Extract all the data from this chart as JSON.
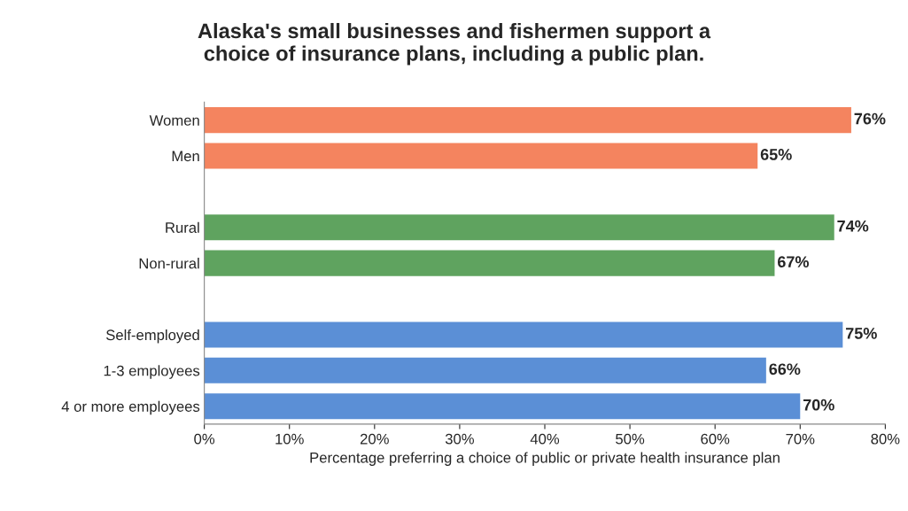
{
  "chart_data": {
    "type": "bar",
    "orientation": "horizontal",
    "title": "Alaska's small businesses and fishermen support a\nchoice of insurance plans, including a public plan.",
    "xlabel": "Percentage preferring a choice of public or private health insurance plan",
    "categories": [
      "Women",
      "Men",
      null,
      "Rural",
      "Non-rural",
      null,
      "Self-employed",
      "1-3 employees",
      "4 or more employees"
    ],
    "values": [
      76,
      65,
      null,
      74,
      67,
      null,
      75,
      66,
      70
    ],
    "colors": [
      "#f4845f",
      "#f4845f",
      null,
      "#5fa35f",
      "#5fa35f",
      null,
      "#5b8fd6",
      "#5b8fd6",
      "#5b8fd6"
    ],
    "value_labels": [
      "76%",
      "65%",
      null,
      "74%",
      "67%",
      null,
      "75%",
      "66%",
      "70%"
    ],
    "xlim": [
      0,
      80
    ],
    "xticks": [
      {
        "value": 0,
        "label": "0%"
      },
      {
        "value": 10,
        "label": "10%"
      },
      {
        "value": 20,
        "label": "20%"
      },
      {
        "value": 30,
        "label": "30%"
      },
      {
        "value": 40,
        "label": "40%"
      },
      {
        "value": 50,
        "label": "50%"
      },
      {
        "value": 60,
        "label": "60%"
      },
      {
        "value": 70,
        "label": "70%"
      },
      {
        "value": 80,
        "label": "80%"
      }
    ],
    "grid": false
  }
}
